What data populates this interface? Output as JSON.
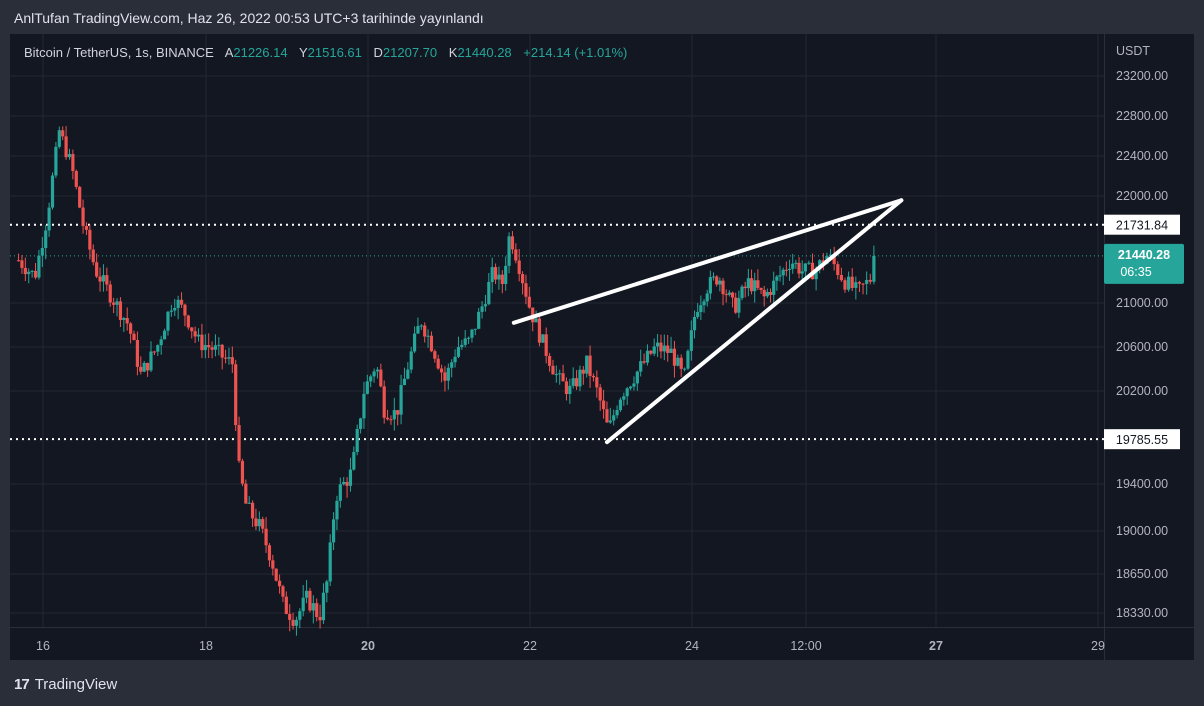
{
  "header": {
    "text": "AnlTufan TradingView.com, Haz 26, 2022 00:53 UTC+3 tarihinde yayınlandı"
  },
  "legend": {
    "symbol": "Bitcoin / TetherUS, 1s, BINANCE",
    "open_label": "A",
    "open": "21226.14",
    "high_label": "Y",
    "high": "21516.61",
    "low_label": "D",
    "low": "21207.70",
    "close_label": "K",
    "close": "21440.28",
    "change": "+214.14 (+1.01%)"
  },
  "footer": {
    "logo_mark": "17",
    "logo_text": "TradingView"
  },
  "colors": {
    "up": "#26a69a",
    "down": "#ef5350",
    "background": "#131722",
    "grid": "#232733",
    "lines": "#ffffff"
  },
  "chart_data": {
    "type": "candlestick",
    "currency": "USDT",
    "ylim": [
      18200,
      23500
    ],
    "y_ticks": [
      "23200.00",
      "22800.00",
      "22400.00",
      "22000.00",
      "21000.00",
      "20600.00",
      "20200.00",
      "19400.00",
      "19000.00",
      "18650.00",
      "18330.00"
    ],
    "y_tick_values": [
      23200,
      22800,
      22400,
      22000,
      21000,
      20600,
      20200,
      19400,
      19000,
      18650,
      18330
    ],
    "x_ticks": [
      "16",
      "18",
      "20",
      "22",
      "24",
      "12:00",
      "27",
      "29"
    ],
    "x_tick_days": [
      16,
      18,
      20,
      22,
      24,
      25.5,
      27,
      29
    ],
    "x_bold_ticks": [
      "20",
      "27"
    ],
    "xlim_days": [
      15.65,
      29.1
    ],
    "horizontal_levels": [
      {
        "label": "21731.84",
        "value": 21731.84,
        "style": "dotted"
      },
      {
        "label": "19785.55",
        "value": 19785.55,
        "style": "dotted"
      }
    ],
    "last_price": {
      "label": "21440.28",
      "countdown": "06:35",
      "value": 21440.28
    },
    "trendlines": [
      {
        "name": "upper",
        "from": {
          "day": 21.8,
          "price": 20820
        },
        "to": {
          "day": 26.6,
          "price": 21960
        }
      },
      {
        "name": "lower",
        "from": {
          "day": 22.95,
          "price": 19760
        },
        "to": {
          "day": 26.6,
          "price": 21960
        }
      }
    ],
    "anchors": [
      {
        "day": 15.7,
        "price": 21400
      },
      {
        "day": 15.9,
        "price": 21250
      },
      {
        "day": 16.05,
        "price": 21800
      },
      {
        "day": 16.2,
        "price": 22650
      },
      {
        "day": 16.35,
        "price": 22300
      },
      {
        "day": 16.5,
        "price": 21700
      },
      {
        "day": 16.65,
        "price": 21300
      },
      {
        "day": 16.85,
        "price": 21050
      },
      {
        "day": 17.05,
        "price": 20800
      },
      {
        "day": 17.2,
        "price": 20350
      },
      {
        "day": 17.4,
        "price": 20600
      },
      {
        "day": 17.6,
        "price": 21050
      },
      {
        "day": 17.75,
        "price": 20900
      },
      {
        "day": 17.9,
        "price": 20650
      },
      {
        "day": 18.1,
        "price": 20580
      },
      {
        "day": 18.25,
        "price": 20480
      },
      {
        "day": 18.33,
        "price": 20450
      },
      {
        "day": 18.4,
        "price": 19550
      },
      {
        "day": 18.5,
        "price": 19200
      },
      {
        "day": 18.65,
        "price": 19050
      },
      {
        "day": 18.8,
        "price": 18800
      },
      {
        "day": 18.95,
        "price": 18400
      },
      {
        "day": 19.1,
        "price": 18280
      },
      {
        "day": 19.25,
        "price": 18450
      },
      {
        "day": 19.4,
        "price": 18300
      },
      {
        "day": 19.5,
        "price": 18600
      },
      {
        "day": 19.6,
        "price": 19300
      },
      {
        "day": 19.8,
        "price": 19500
      },
      {
        "day": 19.95,
        "price": 20200
      },
      {
        "day": 20.1,
        "price": 20450
      },
      {
        "day": 20.2,
        "price": 20050
      },
      {
        "day": 20.35,
        "price": 20000
      },
      {
        "day": 20.5,
        "price": 20450
      },
      {
        "day": 20.65,
        "price": 20850
      },
      {
        "day": 20.8,
        "price": 20600
      },
      {
        "day": 20.95,
        "price": 20300
      },
      {
        "day": 21.1,
        "price": 20600
      },
      {
        "day": 21.25,
        "price": 20650
      },
      {
        "day": 21.4,
        "price": 20950
      },
      {
        "day": 21.55,
        "price": 21300
      },
      {
        "day": 21.65,
        "price": 21150
      },
      {
        "day": 21.75,
        "price": 21650
      },
      {
        "day": 21.85,
        "price": 21400
      },
      {
        "day": 22.0,
        "price": 20950
      },
      {
        "day": 22.15,
        "price": 20650
      },
      {
        "day": 22.35,
        "price": 20300
      },
      {
        "day": 22.5,
        "price": 20200
      },
      {
        "day": 22.7,
        "price": 20450
      },
      {
        "day": 22.85,
        "price": 20150
      },
      {
        "day": 22.97,
        "price": 19850
      },
      {
        "day": 23.1,
        "price": 20150
      },
      {
        "day": 23.3,
        "price": 20350
      },
      {
        "day": 23.55,
        "price": 20600
      },
      {
        "day": 23.75,
        "price": 20550
      },
      {
        "day": 23.9,
        "price": 20300
      },
      {
        "day": 24.05,
        "price": 20950
      },
      {
        "day": 24.2,
        "price": 21150
      },
      {
        "day": 24.35,
        "price": 21250
      },
      {
        "day": 24.55,
        "price": 20950
      },
      {
        "day": 24.75,
        "price": 21200
      },
      {
        "day": 24.95,
        "price": 21050
      },
      {
        "day": 25.15,
        "price": 21250
      },
      {
        "day": 25.3,
        "price": 21400
      },
      {
        "day": 25.45,
        "price": 21300
      },
      {
        "day": 25.6,
        "price": 21300
      },
      {
        "day": 25.75,
        "price": 21450
      },
      {
        "day": 25.95,
        "price": 21200
      },
      {
        "day": 26.1,
        "price": 21100
      },
      {
        "day": 26.25,
        "price": 21230
      },
      {
        "day": 26.32,
        "price": 21440
      }
    ]
  }
}
